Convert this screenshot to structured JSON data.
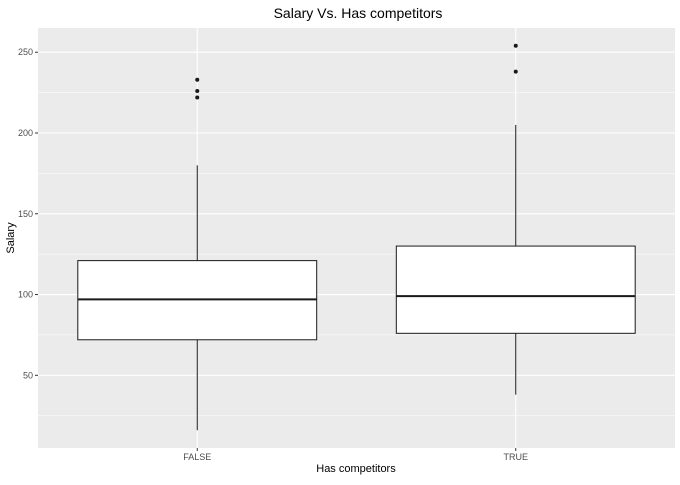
{
  "chart_data": {
    "type": "boxplot",
    "title": "Salary Vs. Has competitors",
    "xlabel": "Has competitors",
    "ylabel": "Salary",
    "ylim": [
      5,
      265
    ],
    "yticks": [
      50,
      100,
      150,
      200,
      250
    ],
    "grid": true,
    "legend": "none",
    "categories": [
      "FALSE",
      "TRUE"
    ],
    "boxes": [
      {
        "category": "FALSE",
        "min": 16,
        "q1": 72,
        "median": 97,
        "q3": 121,
        "max": 180,
        "outliers": [
          222,
          226,
          233
        ]
      },
      {
        "category": "TRUE",
        "min": 38,
        "q1": 76,
        "median": 99,
        "q3": 130,
        "max": 205,
        "outliers": [
          238,
          254
        ]
      }
    ]
  },
  "colors": {
    "panel_background": "#ebebeb",
    "grid": "#ffffff",
    "box_fill": "#ffffff",
    "box_stroke": "#1a1a1a"
  }
}
